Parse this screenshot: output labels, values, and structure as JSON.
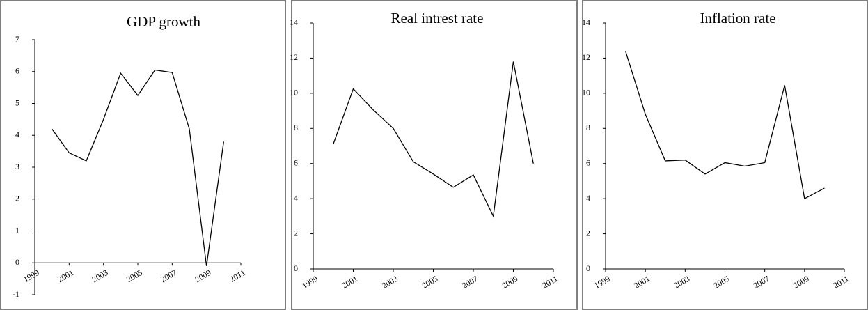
{
  "chart_data": [
    {
      "type": "line",
      "title": "GDP growth",
      "x": [
        2000,
        2001,
        2002,
        2003,
        2004,
        2005,
        2006,
        2007,
        2008,
        2009,
        2010
      ],
      "values": [
        4.2,
        3.45,
        3.2,
        4.5,
        5.95,
        5.25,
        6.05,
        5.97,
        4.2,
        -0.1,
        3.8
      ],
      "color": "#000000",
      "xlim": [
        1999,
        2011
      ],
      "xticks": [
        1999,
        2001,
        2003,
        2005,
        2007,
        2009,
        2011
      ],
      "ylim": [
        -1,
        7
      ],
      "yticks": [
        -1,
        0,
        1,
        2,
        3,
        4,
        5,
        6,
        7
      ]
    },
    {
      "type": "line",
      "title": "Real intrest rate",
      "x": [
        2000,
        2001,
        2002,
        2003,
        2004,
        2005,
        2006,
        2007,
        2008,
        2009,
        2010
      ],
      "values": [
        7.1,
        10.25,
        9.05,
        8.0,
        6.1,
        5.4,
        4.65,
        5.35,
        3.0,
        11.8,
        6.0
      ],
      "color": "#000000",
      "xlim": [
        1999,
        2011
      ],
      "xticks": [
        1999,
        2001,
        2003,
        2005,
        2007,
        2009,
        2011
      ],
      "ylim": [
        0,
        14
      ],
      "yticks": [
        0,
        2,
        4,
        6,
        8,
        10,
        12,
        14
      ]
    },
    {
      "type": "line",
      "title": "Inflation rate",
      "x": [
        2000,
        2001,
        2002,
        2003,
        2004,
        2005,
        2006,
        2007,
        2008,
        2009,
        2010
      ],
      "values": [
        12.4,
        8.8,
        6.15,
        6.2,
        5.4,
        6.05,
        5.85,
        6.05,
        10.45,
        4.0,
        4.6
      ],
      "color": "#000000",
      "xlim": [
        1999,
        2011
      ],
      "xticks": [
        1999,
        2001,
        2003,
        2005,
        2007,
        2009,
        2011
      ],
      "ylim": [
        0,
        14
      ],
      "yticks": [
        0,
        2,
        4,
        6,
        8,
        10,
        12,
        14
      ]
    }
  ]
}
